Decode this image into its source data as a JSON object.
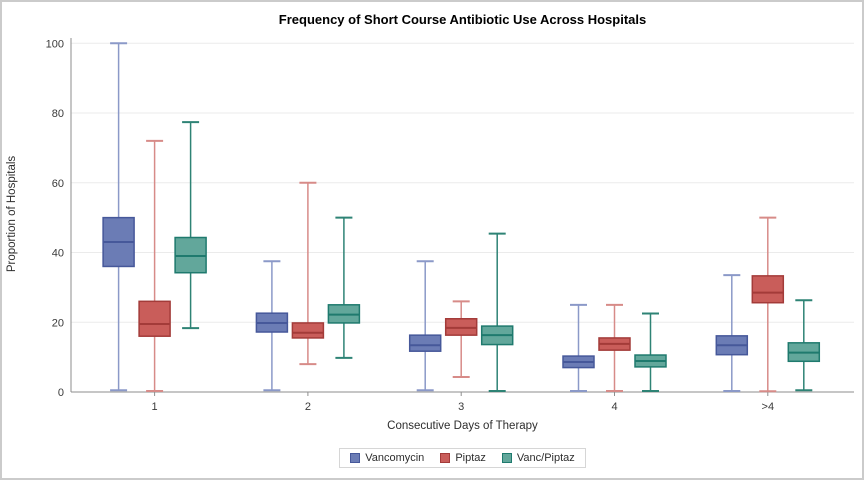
{
  "title": "Frequency of Short Course Antibiotic Use Across Hospitals",
  "chart_data": {
    "type": "boxplot",
    "title": "Frequency of Short Course Antibiotic Use Across Hospitals",
    "xlabel": "Consecutive Days of Therapy",
    "ylabel": "Proportion of Hospitals",
    "categories": [
      "1",
      "2",
      "3",
      "4",
      ">4"
    ],
    "ylim": [
      0,
      100
    ],
    "yticks": [
      0,
      20,
      40,
      60,
      80,
      100
    ],
    "grid": true,
    "legend_position": "bottom",
    "colors": {
      "gridline": "#ebebeb",
      "axis": "#8e8e8e",
      "legend_border": "#d6d6d6"
    },
    "series": [
      {
        "name": "Vancomycin",
        "fill": "#6b7cb5",
        "stroke": "#46589a",
        "whisker": "#8b99c8",
        "boxes": [
          {
            "min": 0.5,
            "q1": 36.0,
            "median": 43.0,
            "q3": 50.0,
            "max": 100.0
          },
          {
            "min": 0.5,
            "q1": 17.2,
            "median": 19.8,
            "q3": 22.6,
            "max": 37.5
          },
          {
            "min": 0.5,
            "q1": 11.7,
            "median": 13.4,
            "q3": 16.3,
            "max": 37.5
          },
          {
            "min": 0.3,
            "q1": 7.0,
            "median": 8.6,
            "q3": 10.3,
            "max": 25.0
          },
          {
            "min": 0.3,
            "q1": 10.7,
            "median": 13.4,
            "q3": 16.1,
            "max": 33.5
          }
        ]
      },
      {
        "name": "Piptaz",
        "fill": "#c95d5a",
        "stroke": "#a33b39",
        "whisker": "#d78b88",
        "boxes": [
          {
            "min": 0.3,
            "q1": 16.0,
            "median": 19.5,
            "q3": 26.0,
            "max": 72.0
          },
          {
            "min": 8.0,
            "q1": 15.5,
            "median": 17.0,
            "q3": 19.8,
            "max": 60.0
          },
          {
            "min": 4.3,
            "q1": 16.3,
            "median": 18.4,
            "q3": 21.0,
            "max": 26.0
          },
          {
            "min": 0.3,
            "q1": 12.0,
            "median": 13.8,
            "q3": 15.5,
            "max": 25.0
          },
          {
            "min": 0.2,
            "q1": 25.6,
            "median": 28.5,
            "q3": 33.3,
            "max": 50.0
          }
        ]
      },
      {
        "name": "Vanc/Piptaz",
        "fill": "#62a79b",
        "stroke": "#1f7a6e",
        "whisker": "#2e8375",
        "boxes": [
          {
            "min": 18.3,
            "q1": 34.2,
            "median": 39.0,
            "q3": 44.3,
            "max": 77.4
          },
          {
            "min": 9.8,
            "q1": 19.8,
            "median": 22.2,
            "q3": 25.0,
            "max": 50.0
          },
          {
            "min": 0.3,
            "q1": 13.6,
            "median": 16.3,
            "q3": 18.9,
            "max": 45.4
          },
          {
            "min": 0.3,
            "q1": 7.2,
            "median": 8.9,
            "q3": 10.6,
            "max": 22.5
          },
          {
            "min": 0.5,
            "q1": 8.8,
            "median": 11.3,
            "q3": 14.1,
            "max": 26.3
          }
        ]
      }
    ]
  }
}
